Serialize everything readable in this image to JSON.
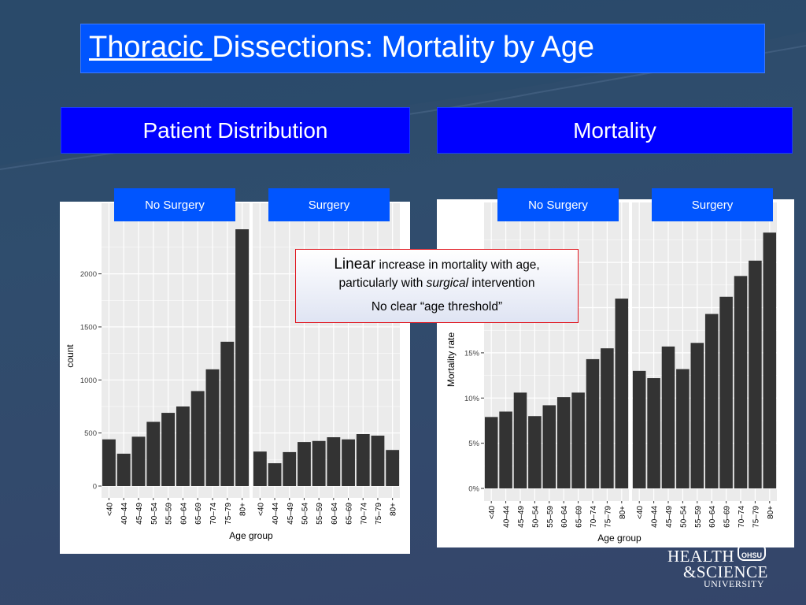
{
  "slide": {
    "title_underlined": "Thoracic ",
    "title_rest": "Dissections: Mortality by Age",
    "left_header": "Patient Distribution",
    "right_header": "Mortality"
  },
  "callout": {
    "line1_emph": "Linear",
    "line1_rest": " increase in mortality with age,",
    "line2_pre": "particularly with ",
    "line2_emph": "surgical",
    "line2_post": " intervention",
    "line3": "No clear “age threshold”"
  },
  "logo": {
    "line1": "HEALTH",
    "line2": "&SCIENCE",
    "line3": "UNIVERSITY",
    "badge": "OHSU"
  },
  "colors": {
    "bar": "#333333",
    "panel_bg": "#ebebeb",
    "grid": "#ffffff",
    "header_blue": "#0000ff",
    "title_blue": "#0055ff",
    "callout_border": "#e0141c"
  },
  "chart_data": [
    {
      "type": "bar",
      "xlabel": "Age group",
      "ylabel": "count",
      "ylim": [
        0,
        2450
      ],
      "yticks": [
        0,
        500,
        1000,
        1500,
        2000
      ],
      "ytick_labels": [
        "0",
        "500",
        "1000",
        "1500",
        "2000"
      ],
      "facets": [
        "No Surgery",
        "Surgery"
      ],
      "categories": [
        "<40",
        "40–44",
        "45–49",
        "50–54",
        "55–59",
        "60–64",
        "65–69",
        "70–74",
        "75–79",
        "80+"
      ],
      "series": [
        {
          "name": "No Surgery",
          "values": [
            440,
            305,
            465,
            605,
            690,
            750,
            895,
            1100,
            1360,
            2420
          ]
        },
        {
          "name": "Surgery",
          "values": [
            325,
            215,
            320,
            415,
            425,
            460,
            440,
            490,
            475,
            340
          ]
        }
      ]
    },
    {
      "type": "bar",
      "xlabel": "Age group",
      "ylabel": "Mortality rate",
      "ylim": [
        0,
        0.285
      ],
      "yticks": [
        0,
        0.05,
        0.1,
        0.15
      ],
      "ytick_labels": [
        "0%",
        "5%",
        "10%",
        "15%"
      ],
      "facets": [
        "No Surgery",
        "Surgery"
      ],
      "categories": [
        "<40",
        "40–44",
        "45–49",
        "50–54",
        "55–59",
        "60–64",
        "65–69",
        "70–74",
        "75–79",
        "80+"
      ],
      "series": [
        {
          "name": "No Surgery",
          "values": [
            0.079,
            0.085,
            0.106,
            0.08,
            0.092,
            0.101,
            0.106,
            0.143,
            0.155,
            0.21
          ]
        },
        {
          "name": "Surgery",
          "values": [
            0.13,
            0.122,
            0.157,
            0.132,
            0.161,
            0.193,
            0.212,
            0.235,
            0.252,
            0.283
          ]
        }
      ]
    }
  ]
}
